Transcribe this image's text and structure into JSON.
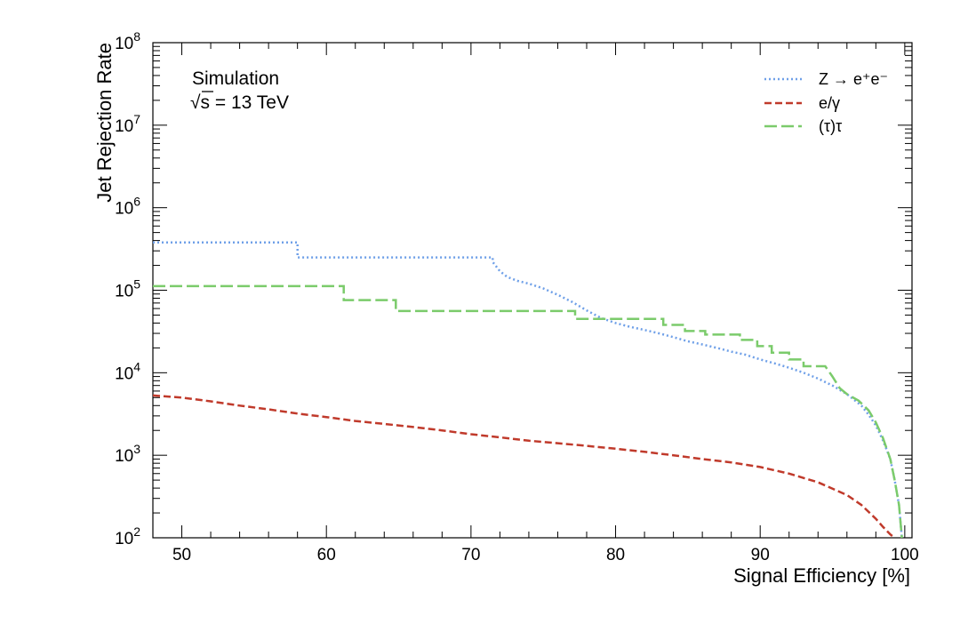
{
  "chart_data": {
    "type": "line",
    "xlabel": "Signal Efficiency [%]",
    "ylabel": "Jet Rejection Rate",
    "xlim": [
      48,
      100.5
    ],
    "ylim": [
      100,
      100000000
    ],
    "y_scale": "log",
    "x_ticks": [
      "50",
      "60",
      "70",
      "80",
      "90",
      "100"
    ],
    "y_ticks": [
      {
        "base": "10",
        "exp": "2"
      },
      {
        "base": "10",
        "exp": "3"
      },
      {
        "base": "10",
        "exp": "4"
      },
      {
        "base": "10",
        "exp": "5"
      },
      {
        "base": "10",
        "exp": "6"
      },
      {
        "base": "10",
        "exp": "7"
      },
      {
        "base": "10",
        "exp": "8"
      }
    ],
    "annotations": {
      "line1": "Simulation",
      "sqrt_symbol": "√",
      "sqrt_arg": "s",
      "energy": " = 13 TeV"
    },
    "legend_position": "top-right",
    "grid": false,
    "series": [
      {
        "name": "Z → e⁺e⁻",
        "style": "dotted",
        "color": "#6fa0e8",
        "step": true,
        "x": [
          48,
          58,
          58,
          71.5,
          71.5,
          72,
          72.5,
          73.2,
          74,
          75,
          76,
          77,
          78,
          79,
          80,
          81,
          82,
          83,
          84,
          85,
          86,
          87,
          88,
          89,
          90,
          91,
          92,
          93,
          94,
          95,
          96,
          97,
          97.5,
          98,
          98.5,
          99,
          99.3,
          99.6,
          99.8
        ],
        "y": [
          380000,
          380000,
          250000,
          250000,
          220000,
          170000,
          145000,
          130000,
          120000,
          105000,
          88000,
          72000,
          57000,
          46000,
          40000,
          36000,
          33000,
          30000,
          27000,
          24000,
          22000,
          20000,
          18000,
          16500,
          14500,
          13000,
          11500,
          10000,
          8500,
          7000,
          5500,
          4000,
          3100,
          2300,
          1500,
          900,
          500,
          250,
          100
        ]
      },
      {
        "name": "e/γ",
        "style": "dashed",
        "color": "#c03a2b",
        "step": false,
        "x": [
          48,
          50,
          52,
          54,
          56,
          58,
          60,
          62,
          64,
          66,
          68,
          70,
          72,
          74,
          76,
          78,
          80,
          82,
          84,
          86,
          88,
          90,
          92,
          94,
          96,
          97,
          98,
          98.5,
          99,
          99.3
        ],
        "y": [
          5300,
          5000,
          4500,
          4000,
          3600,
          3200,
          2900,
          2600,
          2400,
          2200,
          2000,
          1800,
          1650,
          1500,
          1400,
          1300,
          1200,
          1100,
          1000,
          900,
          820,
          720,
          600,
          470,
          330,
          250,
          170,
          135,
          110,
          100
        ]
      },
      {
        "name": "(τ)τ",
        "style": "long-dashed",
        "color": "#7bcb6b",
        "step": true,
        "x": [
          48,
          61.2,
          61.2,
          64.8,
          64.8,
          77.2,
          77.2,
          83.3,
          83.3,
          84.8,
          84.8,
          86.2,
          86.2,
          88.6,
          88.6,
          89.8,
          89.8,
          90.8,
          90.8,
          92,
          92,
          93,
          93,
          94.5,
          95,
          95.5,
          96,
          96.8,
          97.5,
          98,
          98.5,
          99,
          99.3,
          99.6,
          99.8
        ],
        "y": [
          112000,
          112000,
          76000,
          76000,
          56000,
          56000,
          45000,
          45000,
          38000,
          38000,
          32000,
          32000,
          29000,
          29000,
          25000,
          25000,
          21000,
          21000,
          17500,
          17500,
          14500,
          14500,
          12000,
          12000,
          9000,
          6500,
          5500,
          4600,
          3500,
          2500,
          1600,
          900,
          500,
          250,
          100
        ]
      }
    ]
  }
}
